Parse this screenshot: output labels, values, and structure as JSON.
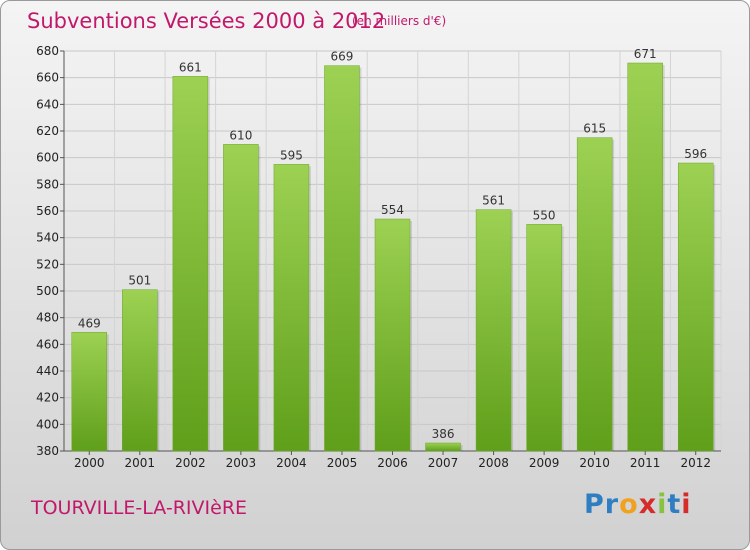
{
  "header": {
    "title": "Subventions Versées 2000 à 2012",
    "unit": "(en milliers d'€)"
  },
  "footer": {
    "commune": "TOURVILLE-LA-RIVIèRE",
    "logo_text": "Proxiti"
  },
  "colors": {
    "title": "#c2186b",
    "bar_top": "#9dd153",
    "bar_bottom": "#5f9f1a",
    "logo_letters": [
      "#2f7ec2",
      "#2f7ec2",
      "#f0a21f",
      "#d62b2b",
      "#86c440",
      "#2f7ec2",
      "#d62b2b"
    ]
  },
  "chart_data": {
    "type": "bar",
    "title": "Subventions Versées 2000 à 2012",
    "subtitle": "(en milliers d'€)",
    "categories": [
      "2000",
      "2001",
      "2002",
      "2003",
      "2004",
      "2005",
      "2006",
      "2007",
      "2008",
      "2009",
      "2010",
      "2011",
      "2012"
    ],
    "values": [
      469,
      501,
      661,
      610,
      595,
      669,
      554,
      386,
      561,
      550,
      615,
      671,
      596
    ],
    "ylim": [
      380,
      680
    ],
    "yticks": [
      380,
      400,
      420,
      440,
      460,
      480,
      500,
      520,
      540,
      560,
      580,
      600,
      620,
      640,
      660,
      680
    ],
    "grid": true,
    "xlabel": "",
    "ylabel": ""
  }
}
